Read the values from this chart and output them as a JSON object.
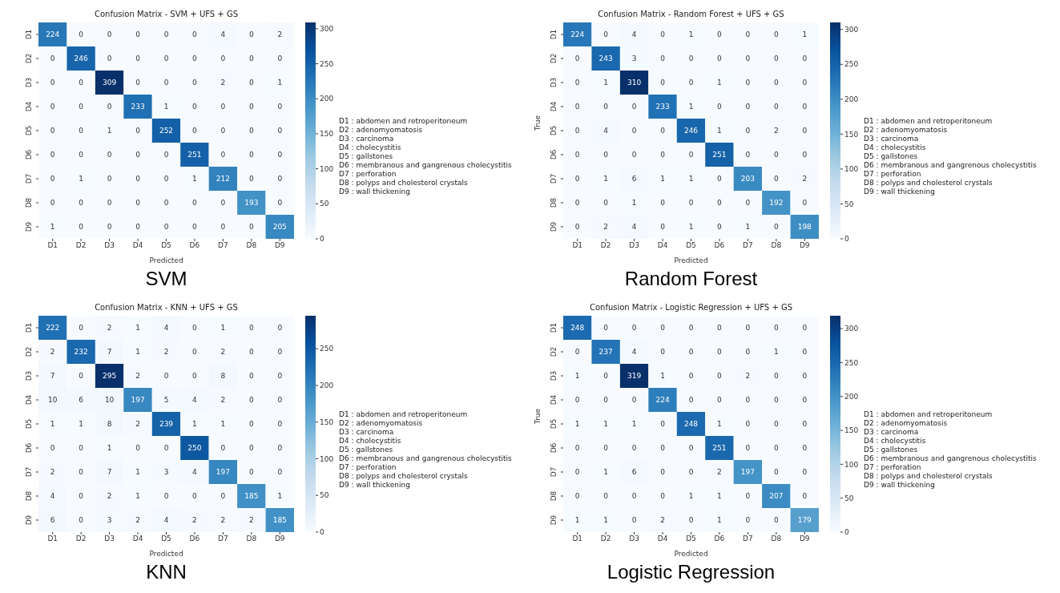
{
  "chart_data": [
    {
      "type": "heatmap",
      "title": "Confusion Matrix - SVM + UFS + GS",
      "xlabel": "Predicted",
      "categories": [
        "D1",
        "D2",
        "D3",
        "D4",
        "D5",
        "D6",
        "D7",
        "D8",
        "D9"
      ],
      "y_categories": [
        "D1",
        "D2",
        "D3",
        "D4",
        "D5",
        "D6",
        "D7",
        "D8",
        "D9"
      ],
      "cells": [
        [
          224,
          0,
          0,
          0,
          0,
          0,
          4,
          0,
          2
        ],
        [
          0,
          246,
          0,
          0,
          0,
          0,
          0,
          0,
          0
        ],
        [
          0,
          0,
          309,
          0,
          0,
          0,
          2,
          0,
          1
        ],
        [
          0,
          0,
          0,
          233,
          1,
          0,
          0,
          0,
          0
        ],
        [
          0,
          0,
          1,
          0,
          252,
          0,
          0,
          0,
          0
        ],
        [
          0,
          0,
          0,
          0,
          0,
          251,
          0,
          0,
          0
        ],
        [
          0,
          1,
          0,
          0,
          0,
          1,
          212,
          0,
          0
        ],
        [
          0,
          0,
          0,
          0,
          0,
          0,
          0,
          193,
          0
        ],
        [
          1,
          0,
          0,
          0,
          0,
          0,
          0,
          0,
          205
        ]
      ],
      "clim": [
        0,
        309
      ],
      "cticks": [
        0,
        50,
        100,
        150,
        200,
        250,
        300
      ],
      "data_labels": true,
      "annotations": [
        "D1 : abdomen and retroperitoneum",
        "D2 : adenomyomatosis",
        "D3 : carcinoma",
        "D4 : cholecystitis",
        "D5 : gallstones",
        "D6 : membranous and gangrenous cholecystitis",
        "D7 : perforation",
        "D8 : polyps and cholesterol crystals",
        "D9 : wall thickening",
        "SVM"
      ]
    },
    {
      "type": "heatmap",
      "title": "Confusion Matrix - Random Forest + UFS + GS",
      "xlabel": "Predicted",
      "ylabel": "True",
      "categories": [
        "D1",
        "D2",
        "D3",
        "D4",
        "D5",
        "D6",
        "D7",
        "D8",
        "D9"
      ],
      "y_categories": [
        "D1",
        "D2",
        "D3",
        "D4",
        "D5",
        "D6",
        "D7",
        "D8",
        "D9"
      ],
      "cells": [
        [
          224,
          0,
          4,
          0,
          1,
          0,
          0,
          0,
          1
        ],
        [
          0,
          243,
          3,
          0,
          0,
          0,
          0,
          0,
          0
        ],
        [
          0,
          1,
          310,
          0,
          0,
          1,
          0,
          0,
          0
        ],
        [
          0,
          0,
          0,
          233,
          1,
          0,
          0,
          0,
          0
        ],
        [
          0,
          4,
          0,
          0,
          246,
          1,
          0,
          2,
          0
        ],
        [
          0,
          0,
          0,
          0,
          0,
          251,
          0,
          0,
          0
        ],
        [
          0,
          1,
          6,
          1,
          1,
          0,
          203,
          0,
          2
        ],
        [
          0,
          0,
          1,
          0,
          0,
          0,
          0,
          192,
          0
        ],
        [
          0,
          2,
          4,
          0,
          1,
          0,
          1,
          0,
          198
        ]
      ],
      "clim": [
        0,
        310
      ],
      "cticks": [
        0,
        50,
        100,
        150,
        200,
        250,
        300
      ],
      "data_labels": true,
      "annotations": [
        "D1 : abdomen and retroperitoneum",
        "D2 : adenomyomatosis",
        "D3 : carcinoma",
        "D4 : cholecystitis",
        "D5 : gallstones",
        "D6 : membranous and gangrenous cholecystitis",
        "D7 : perforation",
        "D8 : polyps and cholesterol crystals",
        "D9 : wall thickening",
        "Random Forest"
      ]
    },
    {
      "type": "heatmap",
      "title": "Confusion Matrix - KNN + UFS + GS",
      "xlabel": "Predicted",
      "categories": [
        "D1",
        "D2",
        "D3",
        "D4",
        "D5",
        "D6",
        "D7",
        "D8",
        "D9"
      ],
      "y_categories": [
        "D1",
        "D2",
        "D3",
        "D4",
        "D5",
        "D6",
        "D7",
        "D8",
        "D9"
      ],
      "cells": [
        [
          222,
          0,
          2,
          1,
          4,
          0,
          1,
          0,
          0
        ],
        [
          2,
          232,
          7,
          1,
          2,
          0,
          2,
          0,
          0
        ],
        [
          7,
          0,
          295,
          2,
          0,
          0,
          8,
          0,
          0
        ],
        [
          10,
          6,
          10,
          197,
          5,
          4,
          2,
          0,
          0
        ],
        [
          1,
          1,
          8,
          2,
          239,
          1,
          1,
          0,
          0
        ],
        [
          0,
          0,
          1,
          0,
          0,
          250,
          0,
          0,
          0
        ],
        [
          2,
          0,
          7,
          1,
          3,
          4,
          197,
          0,
          0
        ],
        [
          4,
          0,
          2,
          1,
          0,
          0,
          0,
          185,
          1
        ],
        [
          6,
          0,
          3,
          2,
          4,
          2,
          2,
          2,
          185
        ]
      ],
      "clim": [
        0,
        295
      ],
      "cticks": [
        0,
        50,
        100,
        150,
        200,
        250
      ],
      "data_labels": true,
      "annotations": [
        "D1 : abdomen and retroperitoneum",
        "D2 : adenomyomatosis",
        "D3 : carcinoma",
        "D4 : cholecystitis",
        "D5 : gallstones",
        "D6 : membranous and gangrenous cholecystitis",
        "D7 : perforation",
        "D8 : polyps and cholesterol crystals",
        "D9 : wall thickening",
        "KNN"
      ]
    },
    {
      "type": "heatmap",
      "title": "Confusion Matrix - Logistic Regression + UFS + GS",
      "xlabel": "Predicted",
      "ylabel": "True",
      "categories": [
        "D1",
        "D2",
        "D3",
        "D4",
        "D5",
        "D6",
        "D7",
        "D8",
        "D9"
      ],
      "y_categories": [
        "D1",
        "D2",
        "D3",
        "D4",
        "D5",
        "D6",
        "D7",
        "D8",
        "D9"
      ],
      "cells": [
        [
          248,
          0,
          0,
          0,
          0,
          0,
          0,
          0,
          0
        ],
        [
          0,
          237,
          4,
          0,
          0,
          0,
          0,
          1,
          0
        ],
        [
          1,
          0,
          319,
          1,
          0,
          0,
          2,
          0,
          0
        ],
        [
          0,
          0,
          0,
          224,
          0,
          0,
          0,
          0,
          0
        ],
        [
          1,
          1,
          1,
          0,
          248,
          1,
          0,
          0,
          0
        ],
        [
          0,
          0,
          0,
          0,
          0,
          251,
          0,
          0,
          0
        ],
        [
          0,
          1,
          6,
          0,
          0,
          2,
          197,
          0,
          0
        ],
        [
          0,
          0,
          0,
          0,
          1,
          1,
          0,
          207,
          0
        ],
        [
          1,
          1,
          0,
          2,
          0,
          1,
          0,
          0,
          179
        ]
      ],
      "clim": [
        0,
        319
      ],
      "cticks": [
        0,
        50,
        100,
        150,
        200,
        250,
        300
      ],
      "data_labels": true,
      "annotations": [
        "D1 : abdomen and retroperitoneum",
        "D2 : adenomyomatosis",
        "D3 : carcinoma",
        "D4 : cholecystitis",
        "D5 : gallstones",
        "D6 : membranous and gangrenous cholecystitis",
        "D7 : perforation",
        "D8 : polyps and cholesterol crystals",
        "D9 : wall thickening",
        "Logistic Regression"
      ]
    }
  ]
}
